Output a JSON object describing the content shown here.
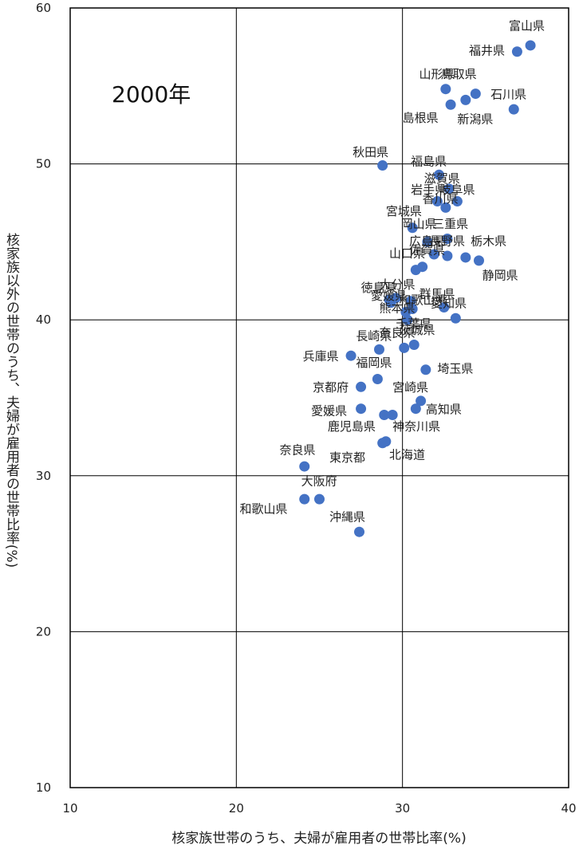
{
  "chart_data": {
    "type": "scatter",
    "annotation": "2000年",
    "xlabel": "核家族世帯のうち、夫婦が雇用者の世帯比率(%)",
    "ylabel": "核家族以外の世帯のうち、夫婦が雇用者の世帯比率(%)",
    "xlim": [
      10,
      40
    ],
    "ylim": [
      10,
      60
    ],
    "xticks": [
      "10",
      "20",
      "30",
      "40"
    ],
    "yticks": [
      "10",
      "20",
      "30",
      "40",
      "50",
      "60"
    ],
    "grid": true,
    "marker_color": "#4472C4",
    "points": [
      {
        "name": "富山県",
        "x": 37.7,
        "y": 57.6
      },
      {
        "name": "福井県",
        "x": 36.9,
        "y": 57.2
      },
      {
        "name": "山形県",
        "x": 32.6,
        "y": 54.8
      },
      {
        "name": "鳥取県",
        "x": 34.4,
        "y": 54.5
      },
      {
        "name": "石川県",
        "x": 36.7,
        "y": 53.5
      },
      {
        "name": "島根県",
        "x": 32.9,
        "y": 53.8
      },
      {
        "name": "新潟県",
        "x": 33.8,
        "y": 54.1
      },
      {
        "name": "秋田県",
        "x": 28.8,
        "y": 49.9
      },
      {
        "name": "福島県",
        "x": 32.2,
        "y": 49.3
      },
      {
        "name": "滋賀県",
        "x": 32.8,
        "y": 48.4
      },
      {
        "name": "岩手県",
        "x": 32.1,
        "y": 47.6
      },
      {
        "name": "岐阜県",
        "x": 33.3,
        "y": 47.6
      },
      {
        "name": "香川県",
        "x": 32.6,
        "y": 47.2
      },
      {
        "name": "宮城県",
        "x": 30.6,
        "y": 45.9
      },
      {
        "name": "三重県",
        "x": 32.7,
        "y": 45.2
      },
      {
        "name": "岡山県",
        "x": 31.5,
        "y": 45.0
      },
      {
        "name": "広島県",
        "x": 31.9,
        "y": 44.2
      },
      {
        "name": "長野県",
        "x": 32.7,
        "y": 44.1
      },
      {
        "name": "栃木県",
        "x": 33.8,
        "y": 44.0
      },
      {
        "name": "静岡県",
        "x": 34.6,
        "y": 43.8
      },
      {
        "name": "山口県",
        "x": 30.8,
        "y": 43.2
      },
      {
        "name": "佐賀県",
        "x": 31.2,
        "y": 43.4
      },
      {
        "name": "徳島県",
        "x": 29.2,
        "y": 41.3
      },
      {
        "name": "大分県",
        "x": 29.6,
        "y": 41.4
      },
      {
        "name": "愛媛県",
        "x": 29.3,
        "y": 41.1
      },
      {
        "name": "群馬県",
        "x": 30.5,
        "y": 41.2
      },
      {
        "name": "熊本県",
        "x": 30.2,
        "y": 40.5
      },
      {
        "name": "和歌山県",
        "x": 30.6,
        "y": 40.7
      },
      {
        "name": "愛知県",
        "x": 32.5,
        "y": 40.8
      },
      {
        "name": "山梨県",
        "x": 33.2,
        "y": 40.1
      },
      {
        "name": "千葉県",
        "x": 30.3,
        "y": 40.0
      },
      {
        "name": "長崎県",
        "x": 28.6,
        "y": 38.1
      },
      {
        "name": "奈良県",
        "x": 30.1,
        "y": 38.2
      },
      {
        "name": "茨城県",
        "x": 30.7,
        "y": 38.4
      },
      {
        "name": "兵庫県",
        "x": 26.9,
        "y": 37.7
      },
      {
        "name": "福岡県",
        "x": 28.5,
        "y": 36.2
      },
      {
        "name": "埼玉県",
        "x": 31.4,
        "y": 36.8
      },
      {
        "name": "京都府",
        "x": 27.5,
        "y": 35.7
      },
      {
        "name": "宮崎県",
        "x": 31.1,
        "y": 34.8
      },
      {
        "name": "愛媛県",
        "x": 27.5,
        "y": 34.3
      },
      {
        "name": "高知県",
        "x": 30.8,
        "y": 34.3
      },
      {
        "name": "鹿児島県",
        "x": 28.9,
        "y": 33.9
      },
      {
        "name": "神奈川県",
        "x": 29.4,
        "y": 33.9
      },
      {
        "name": "東京都",
        "x": 28.8,
        "y": 32.1
      },
      {
        "name": "北海道",
        "x": 29.0,
        "y": 32.2
      },
      {
        "name": "奈良県",
        "x": 24.1,
        "y": 30.6
      },
      {
        "name": "大阪府",
        "x": 24.1,
        "y": 28.5
      },
      {
        "name": "和歌山県",
        "x": 25.0,
        "y": 28.5
      },
      {
        "name": "沖縄県",
        "x": 27.4,
        "y": 26.4
      }
    ],
    "labels": [
      {
        "text": "富山県",
        "x": 36.4,
        "y": 58.6
      },
      {
        "text": "福井県",
        "x": 34.0,
        "y": 57.0
      },
      {
        "text": "山形県",
        "x": 31.0,
        "y": 55.5
      },
      {
        "text": "鳥取県",
        "x": 32.3,
        "y": 55.5
      },
      {
        "text": "石川県",
        "x": 35.3,
        "y": 54.2
      },
      {
        "text": "島根県",
        "x": 30.0,
        "y": 52.7
      },
      {
        "text": "新潟県",
        "x": 33.3,
        "y": 52.6
      },
      {
        "text": "秋田県",
        "x": 27.0,
        "y": 50.5
      },
      {
        "text": "福島県",
        "x": 30.5,
        "y": 49.9
      },
      {
        "text": "滋賀県",
        "x": 31.3,
        "y": 48.8
      },
      {
        "text": "岩手県",
        "x": 30.5,
        "y": 48.1
      },
      {
        "text": "岐阜県",
        "x": 32.2,
        "y": 48.1
      },
      {
        "text": "香川県",
        "x": 31.2,
        "y": 47.5
      },
      {
        "text": "宮城県",
        "x": 29.0,
        "y": 46.7
      },
      {
        "text": "岡山県",
        "x": 29.9,
        "y": 45.9
      },
      {
        "text": "三重県",
        "x": 31.8,
        "y": 45.9
      },
      {
        "text": "広島県",
        "x": 30.4,
        "y": 44.8
      },
      {
        "text": "長野県",
        "x": 31.6,
        "y": 44.8
      },
      {
        "text": "栃木県",
        "x": 34.1,
        "y": 44.8
      },
      {
        "text": "静岡県",
        "x": 34.8,
        "y": 42.6
      },
      {
        "text": "佐賀県",
        "x": 30.4,
        "y": 44.2
      },
      {
        "text": "山口県",
        "x": 29.2,
        "y": 44.0
      },
      {
        "text": "徳島県",
        "x": 27.5,
        "y": 41.8
      },
      {
        "text": "大分県",
        "x": 28.6,
        "y": 42.0
      },
      {
        "text": "愛媛県",
        "x": 28.1,
        "y": 41.3
      },
      {
        "text": "群馬県",
        "x": 31.0,
        "y": 41.4
      },
      {
        "text": "熊本県",
        "x": 28.6,
        "y": 40.5
      },
      {
        "text": "和歌山県",
        "x": 29.8,
        "y": 41.0
      },
      {
        "text": "愛知県",
        "x": 31.7,
        "y": 40.8
      },
      {
        "text": "千葉県",
        "x": 29.6,
        "y": 39.5
      },
      {
        "text": "長崎県",
        "x": 27.2,
        "y": 38.7
      },
      {
        "text": "奈良県",
        "x": 28.6,
        "y": 38.9
      },
      {
        "text": "茨城県",
        "x": 29.8,
        "y": 39.1
      },
      {
        "text": "兵庫県",
        "x": 24.0,
        "y": 37.4
      },
      {
        "text": "福岡県",
        "x": 27.2,
        "y": 37.0
      },
      {
        "text": "埼玉県",
        "x": 32.1,
        "y": 36.6
      },
      {
        "text": "京都府",
        "x": 24.6,
        "y": 35.4
      },
      {
        "text": "宮崎県",
        "x": 29.4,
        "y": 35.4
      },
      {
        "text": "愛媛県",
        "x": 24.5,
        "y": 33.9
      },
      {
        "text": "高知県",
        "x": 31.4,
        "y": 34.0
      },
      {
        "text": "鹿児島県",
        "x": 25.5,
        "y": 32.9
      },
      {
        "text": "神奈川県",
        "x": 29.4,
        "y": 32.9
      },
      {
        "text": "東京都",
        "x": 25.6,
        "y": 30.9
      },
      {
        "text": "北海道",
        "x": 29.2,
        "y": 31.1
      },
      {
        "text": "奈良県",
        "x": 22.6,
        "y": 31.4
      },
      {
        "text": "大阪府",
        "x": 23.9,
        "y": 29.4
      },
      {
        "text": "和歌山県",
        "x": 20.2,
        "y": 27.6
      },
      {
        "text": "沖縄県",
        "x": 25.6,
        "y": 27.1
      }
    ]
  }
}
